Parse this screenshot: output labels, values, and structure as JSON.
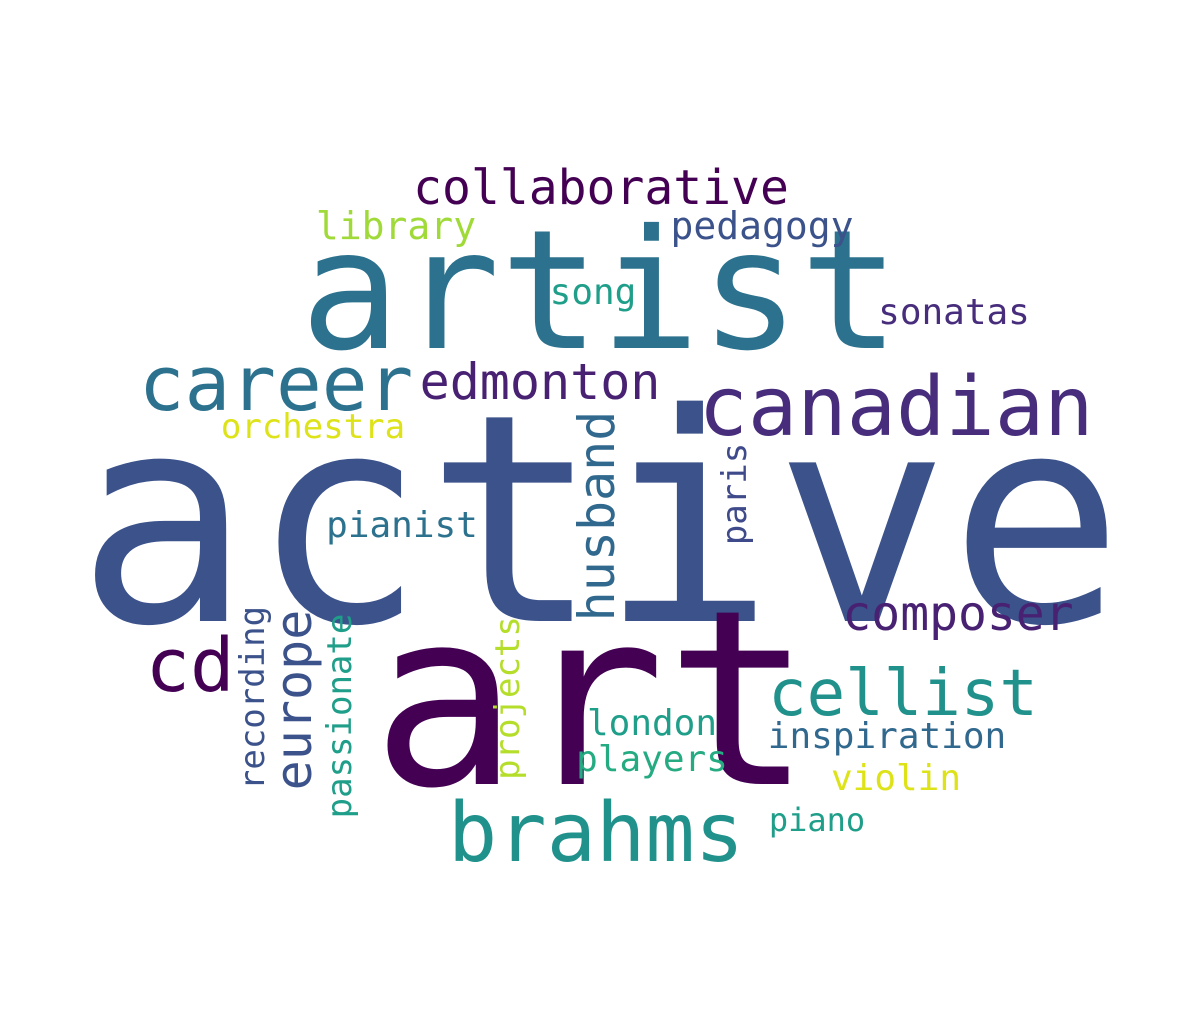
{
  "words": [
    {
      "text": "active",
      "color": "#3b528b"
    },
    {
      "text": "art",
      "color": "#440154"
    },
    {
      "text": "artist",
      "color": "#2c728e"
    },
    {
      "text": "canadian",
      "color": "#472d7b"
    },
    {
      "text": "career",
      "color": "#2c728e"
    },
    {
      "text": "brahms",
      "color": "#21918c"
    },
    {
      "text": "edmonton",
      "color": "#482173"
    },
    {
      "text": "collaborative",
      "color": "#440154"
    },
    {
      "text": "cellist",
      "color": "#21918c"
    },
    {
      "text": "composer",
      "color": "#482173"
    },
    {
      "text": "cd",
      "color": "#440154"
    },
    {
      "text": "husband",
      "color": "#31688e"
    },
    {
      "text": "europe",
      "color": "#3b528b"
    },
    {
      "text": "pedagogy",
      "color": "#3b528b"
    },
    {
      "text": "library",
      "color": "#a0da39"
    },
    {
      "text": "song",
      "color": "#1f9e89"
    },
    {
      "text": "sonatas",
      "color": "#472d7b"
    },
    {
      "text": "orchestra",
      "color": "#dde318"
    },
    {
      "text": "pianist",
      "color": "#2c728e"
    },
    {
      "text": "paris",
      "color": "#3e4a89"
    },
    {
      "text": "recording",
      "color": "#3b528b"
    },
    {
      "text": "passionate",
      "color": "#1f9e89"
    },
    {
      "text": "projects",
      "color": "#b5de2b"
    },
    {
      "text": "london",
      "color": "#1f9e89"
    },
    {
      "text": "players",
      "color": "#25ab82"
    },
    {
      "text": "inspiration",
      "color": "#31688e"
    },
    {
      "text": "violin",
      "color": "#dde318"
    },
    {
      "text": "piano",
      "color": "#1f9e89"
    }
  ]
}
